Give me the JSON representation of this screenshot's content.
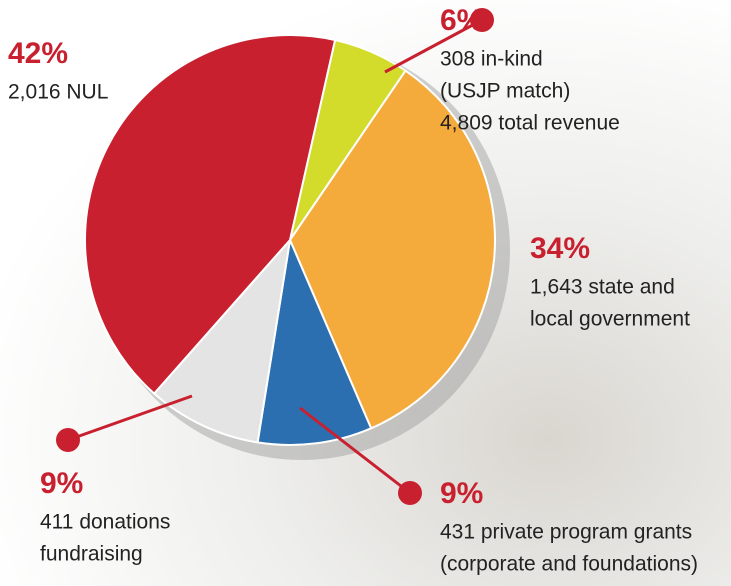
{
  "chart_data": {
    "type": "pie",
    "values": [
      6,
      34,
      9,
      9,
      42
    ],
    "value_labels": [
      "6%",
      "34%",
      "9%",
      "9%",
      "42%"
    ],
    "labels": [
      [
        "308 in-kind",
        "(USJP match)",
        "4,809 total revenue"
      ],
      [
        "1,643 state and",
        "local government"
      ],
      [
        "431 private program grants",
        "(corporate and foundations)"
      ],
      [
        "411 donations",
        "fundraising"
      ],
      [
        "2,016 NUL"
      ]
    ],
    "colors": [
      "#d3db2b",
      "#f5aa3c",
      "#2b6fb1",
      "#e4e4e4",
      "#c8202f"
    ]
  }
}
